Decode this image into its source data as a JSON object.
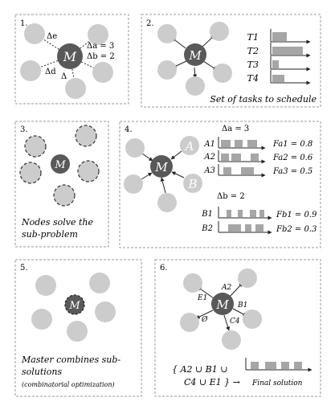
{
  "panels": [
    {
      "number": "1.",
      "master": "M",
      "labels": {
        "delta_e": "Δe",
        "delta_a": "Δa = 3",
        "delta_b": "Δb = 2",
        "delta_d": "Δd",
        "delta": "Δ"
      }
    },
    {
      "number": "2.",
      "master": "M",
      "tasks": [
        "T1",
        "T2",
        "T3",
        "T4"
      ],
      "caption": "Set of tasks to schedule"
    },
    {
      "number": "3.",
      "master": "M",
      "caption_line1": "Nodes solve the",
      "caption_line2": "sub-problem"
    },
    {
      "number": "4.",
      "master": "M",
      "node_a": "A",
      "node_b": "B",
      "delta_a_label": "Δa = 3",
      "delta_b_label": "Δb = 2",
      "rows_a": [
        {
          "name": "A1",
          "fitness": "Fa1 = 0.8"
        },
        {
          "name": "A2",
          "fitness": "Fa2 = 0.6"
        },
        {
          "name": "A3",
          "fitness": "Fa3 = 0.5"
        }
      ],
      "rows_b": [
        {
          "name": "B1",
          "fitness": "Fb1 = 0.9"
        },
        {
          "name": "B2",
          "fitness": "Fb2 = 0.3"
        }
      ]
    },
    {
      "number": "5.",
      "master": "M",
      "caption_line1": "Master combines sub-",
      "caption_line2": "solutions",
      "caption_line3": "(combinatorial optimization)"
    },
    {
      "number": "6.",
      "master": "M",
      "edge_labels": {
        "a2": "A2",
        "e1": "E1",
        "b1": "B1",
        "empty": "Ø",
        "c4": "C4"
      },
      "combo_line1": "{ A2 ∪ B1 ∪",
      "combo_line2": "C4 ∪ E1 } →",
      "final_label": "Final solution"
    }
  ],
  "colors": {
    "light_node": "#cccccc",
    "dark_node": "#595959",
    "bar": "#a6a6a6",
    "border": "#999999"
  }
}
